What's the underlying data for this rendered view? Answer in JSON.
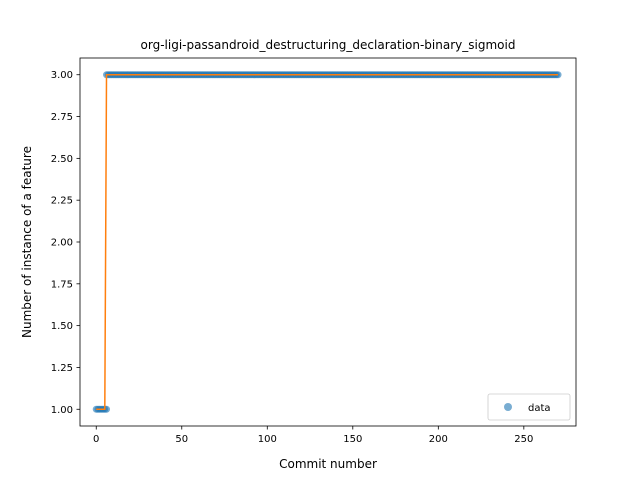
{
  "chart_data": {
    "type": "scatter",
    "title": "org-ligi-passandroid_destructuring_declaration-binary_sigmoid",
    "xlabel": "Commit number",
    "ylabel": "Number of instance of a feature",
    "xlim": [
      -9.5,
      280.5
    ],
    "ylim": [
      0.9,
      3.1
    ],
    "xticks": [
      0,
      50,
      100,
      150,
      200,
      250
    ],
    "yticks": [
      1.0,
      1.25,
      1.5,
      1.75,
      2.0,
      2.25,
      2.5,
      2.75,
      3.0
    ],
    "legend": {
      "position": "lower right",
      "entries": [
        "data"
      ]
    },
    "grid": false,
    "colors": {
      "points": "#1f77b4",
      "fit": "#ff7f0e"
    },
    "series": [
      {
        "name": "data",
        "kind": "points",
        "segments": [
          {
            "x_start": 0,
            "x_end": 6,
            "y": 1.0
          },
          {
            "x_start": 6,
            "x_end": 270,
            "y": 3.0
          }
        ]
      },
      {
        "kind": "line",
        "x": [
          0,
          5,
          6,
          270
        ],
        "y": [
          1.0,
          1.0,
          3.0,
          3.0
        ]
      }
    ]
  }
}
